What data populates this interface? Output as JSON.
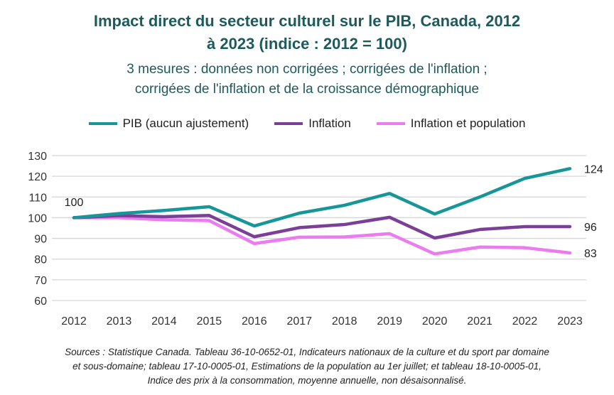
{
  "chart_data": {
    "type": "line",
    "title_line1": "Impact direct du secteur culturel sur le PIB, Canada, 2012",
    "title_line2": "à 2023  (indice : 2012  =  100)",
    "subtitle_line1": "3 mesures : données non corrigées ; corrigées de l'inflation ;",
    "subtitle_line2": "corrigées de l'inflation et de la croissance démographique",
    "x": [
      "2012",
      "2013",
      "2014",
      "2015",
      "2016",
      "2017",
      "2018",
      "2019",
      "2020",
      "2021",
      "2022",
      "2023"
    ],
    "ylim": [
      60,
      130
    ],
    "yticks": [
      "60",
      "70",
      "80",
      "90",
      "100",
      "110",
      "120",
      "130"
    ],
    "grid": true,
    "legend_position": "top",
    "series": [
      {
        "name": "PIB (aucun ajustement)",
        "color": "#17969a",
        "values": [
          100,
          102,
          103.5,
          105.3,
          96,
          102.2,
          106,
          111.7,
          101.8,
          110,
          119,
          123.7
        ]
      },
      {
        "name": "Inflation",
        "color": "#7b3f98",
        "values": [
          100,
          101,
          100.5,
          101.1,
          90.8,
          95.2,
          96.7,
          100.2,
          90.2,
          94.3,
          95.7,
          95.7
        ]
      },
      {
        "name": "Inflation et population",
        "color": "#ea7cf0",
        "values": [
          100,
          100,
          99,
          98.6,
          87.5,
          90.6,
          90.7,
          92.3,
          82.5,
          85.8,
          85.5,
          83
        ]
      }
    ],
    "annotations": {
      "start": "100",
      "end_pib": "124",
      "end_inflation": "96",
      "end_population": "83"
    },
    "source_line1": "Sources : Statistique Canada. Tableau 36-10-0652-01, Indicateurs nationaux de la culture et du sport par domaine",
    "source_line2": "et sous-domaine; tableau 17-10-0005-01, Estimations de la population au 1er juillet; et tableau 18-10-0005-01,",
    "source_line3": "Indice des prix à la consommation, moyenne annuelle, non désaisonnalisé."
  }
}
